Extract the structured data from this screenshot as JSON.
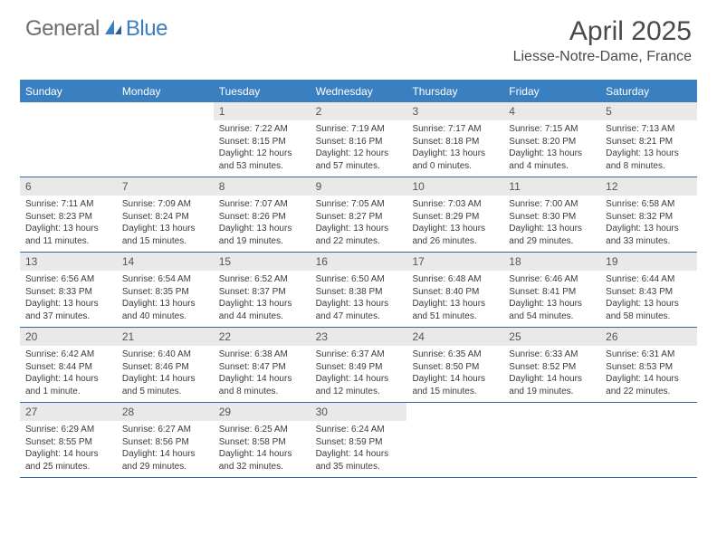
{
  "logo": {
    "general": "General",
    "blue": "Blue"
  },
  "title": "April 2025",
  "location": "Liesse-Notre-Dame, France",
  "colors": {
    "header_bg": "#3a7fc0",
    "header_text": "#ffffff",
    "daynum_bg": "#e9e9e9",
    "daynum_text": "#555555",
    "rule": "#2f6aa5",
    "body_text": "#3b3b3b",
    "logo_gray": "#6f6f6f",
    "logo_blue": "#3a7fc0",
    "page_bg": "#ffffff"
  },
  "typography": {
    "title_fontsize": 30,
    "location_fontsize": 16,
    "weekday_fontsize": 12,
    "daynum_fontsize": 12,
    "body_fontsize": 10
  },
  "weekdays": [
    "Sunday",
    "Monday",
    "Tuesday",
    "Wednesday",
    "Thursday",
    "Friday",
    "Saturday"
  ],
  "weeks": [
    [
      {
        "num": "",
        "sunrise": "",
        "sunset": "",
        "daylight": ""
      },
      {
        "num": "",
        "sunrise": "",
        "sunset": "",
        "daylight": ""
      },
      {
        "num": "1",
        "sunrise": "Sunrise: 7:22 AM",
        "sunset": "Sunset: 8:15 PM",
        "daylight": "Daylight: 12 hours and 53 minutes."
      },
      {
        "num": "2",
        "sunrise": "Sunrise: 7:19 AM",
        "sunset": "Sunset: 8:16 PM",
        "daylight": "Daylight: 12 hours and 57 minutes."
      },
      {
        "num": "3",
        "sunrise": "Sunrise: 7:17 AM",
        "sunset": "Sunset: 8:18 PM",
        "daylight": "Daylight: 13 hours and 0 minutes."
      },
      {
        "num": "4",
        "sunrise": "Sunrise: 7:15 AM",
        "sunset": "Sunset: 8:20 PM",
        "daylight": "Daylight: 13 hours and 4 minutes."
      },
      {
        "num": "5",
        "sunrise": "Sunrise: 7:13 AM",
        "sunset": "Sunset: 8:21 PM",
        "daylight": "Daylight: 13 hours and 8 minutes."
      }
    ],
    [
      {
        "num": "6",
        "sunrise": "Sunrise: 7:11 AM",
        "sunset": "Sunset: 8:23 PM",
        "daylight": "Daylight: 13 hours and 11 minutes."
      },
      {
        "num": "7",
        "sunrise": "Sunrise: 7:09 AM",
        "sunset": "Sunset: 8:24 PM",
        "daylight": "Daylight: 13 hours and 15 minutes."
      },
      {
        "num": "8",
        "sunrise": "Sunrise: 7:07 AM",
        "sunset": "Sunset: 8:26 PM",
        "daylight": "Daylight: 13 hours and 19 minutes."
      },
      {
        "num": "9",
        "sunrise": "Sunrise: 7:05 AM",
        "sunset": "Sunset: 8:27 PM",
        "daylight": "Daylight: 13 hours and 22 minutes."
      },
      {
        "num": "10",
        "sunrise": "Sunrise: 7:03 AM",
        "sunset": "Sunset: 8:29 PM",
        "daylight": "Daylight: 13 hours and 26 minutes."
      },
      {
        "num": "11",
        "sunrise": "Sunrise: 7:00 AM",
        "sunset": "Sunset: 8:30 PM",
        "daylight": "Daylight: 13 hours and 29 minutes."
      },
      {
        "num": "12",
        "sunrise": "Sunrise: 6:58 AM",
        "sunset": "Sunset: 8:32 PM",
        "daylight": "Daylight: 13 hours and 33 minutes."
      }
    ],
    [
      {
        "num": "13",
        "sunrise": "Sunrise: 6:56 AM",
        "sunset": "Sunset: 8:33 PM",
        "daylight": "Daylight: 13 hours and 37 minutes."
      },
      {
        "num": "14",
        "sunrise": "Sunrise: 6:54 AM",
        "sunset": "Sunset: 8:35 PM",
        "daylight": "Daylight: 13 hours and 40 minutes."
      },
      {
        "num": "15",
        "sunrise": "Sunrise: 6:52 AM",
        "sunset": "Sunset: 8:37 PM",
        "daylight": "Daylight: 13 hours and 44 minutes."
      },
      {
        "num": "16",
        "sunrise": "Sunrise: 6:50 AM",
        "sunset": "Sunset: 8:38 PM",
        "daylight": "Daylight: 13 hours and 47 minutes."
      },
      {
        "num": "17",
        "sunrise": "Sunrise: 6:48 AM",
        "sunset": "Sunset: 8:40 PM",
        "daylight": "Daylight: 13 hours and 51 minutes."
      },
      {
        "num": "18",
        "sunrise": "Sunrise: 6:46 AM",
        "sunset": "Sunset: 8:41 PM",
        "daylight": "Daylight: 13 hours and 54 minutes."
      },
      {
        "num": "19",
        "sunrise": "Sunrise: 6:44 AM",
        "sunset": "Sunset: 8:43 PM",
        "daylight": "Daylight: 13 hours and 58 minutes."
      }
    ],
    [
      {
        "num": "20",
        "sunrise": "Sunrise: 6:42 AM",
        "sunset": "Sunset: 8:44 PM",
        "daylight": "Daylight: 14 hours and 1 minute."
      },
      {
        "num": "21",
        "sunrise": "Sunrise: 6:40 AM",
        "sunset": "Sunset: 8:46 PM",
        "daylight": "Daylight: 14 hours and 5 minutes."
      },
      {
        "num": "22",
        "sunrise": "Sunrise: 6:38 AM",
        "sunset": "Sunset: 8:47 PM",
        "daylight": "Daylight: 14 hours and 8 minutes."
      },
      {
        "num": "23",
        "sunrise": "Sunrise: 6:37 AM",
        "sunset": "Sunset: 8:49 PM",
        "daylight": "Daylight: 14 hours and 12 minutes."
      },
      {
        "num": "24",
        "sunrise": "Sunrise: 6:35 AM",
        "sunset": "Sunset: 8:50 PM",
        "daylight": "Daylight: 14 hours and 15 minutes."
      },
      {
        "num": "25",
        "sunrise": "Sunrise: 6:33 AM",
        "sunset": "Sunset: 8:52 PM",
        "daylight": "Daylight: 14 hours and 19 minutes."
      },
      {
        "num": "26",
        "sunrise": "Sunrise: 6:31 AM",
        "sunset": "Sunset: 8:53 PM",
        "daylight": "Daylight: 14 hours and 22 minutes."
      }
    ],
    [
      {
        "num": "27",
        "sunrise": "Sunrise: 6:29 AM",
        "sunset": "Sunset: 8:55 PM",
        "daylight": "Daylight: 14 hours and 25 minutes."
      },
      {
        "num": "28",
        "sunrise": "Sunrise: 6:27 AM",
        "sunset": "Sunset: 8:56 PM",
        "daylight": "Daylight: 14 hours and 29 minutes."
      },
      {
        "num": "29",
        "sunrise": "Sunrise: 6:25 AM",
        "sunset": "Sunset: 8:58 PM",
        "daylight": "Daylight: 14 hours and 32 minutes."
      },
      {
        "num": "30",
        "sunrise": "Sunrise: 6:24 AM",
        "sunset": "Sunset: 8:59 PM",
        "daylight": "Daylight: 14 hours and 35 minutes."
      },
      {
        "num": "",
        "sunrise": "",
        "sunset": "",
        "daylight": ""
      },
      {
        "num": "",
        "sunrise": "",
        "sunset": "",
        "daylight": ""
      },
      {
        "num": "",
        "sunrise": "",
        "sunset": "",
        "daylight": ""
      }
    ]
  ]
}
